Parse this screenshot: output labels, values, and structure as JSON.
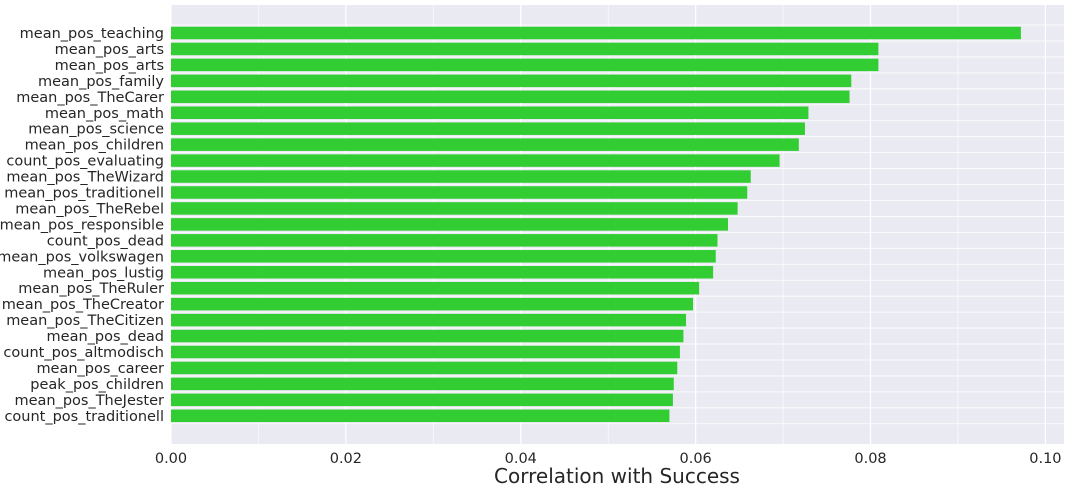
{
  "chart_data": {
    "type": "bar",
    "orientation": "horizontal",
    "title": "",
    "xlabel": "Correlation with Success",
    "ylabel": "",
    "xlim": [
      0.0,
      0.102
    ],
    "xticks": [
      "0.00",
      "0.02",
      "0.04",
      "0.06",
      "0.08",
      "0.10"
    ],
    "xtick_values": [
      0.0,
      0.02,
      0.04,
      0.06,
      0.08,
      0.1
    ],
    "grid": true,
    "style": "seaborn-darkgrid",
    "bar_color": "#32cd32",
    "background_color": "#eaeaf2",
    "categories": [
      "mean_pos_teaching",
      "mean_pos_arts",
      "mean_pos_arts",
      "mean_pos_family",
      "mean_pos_TheCarer",
      "mean_pos_math",
      "mean_pos_science",
      "mean_pos_children",
      "count_pos_evaluating",
      "mean_pos_TheWizard",
      "mean_pos_traditionell",
      "mean_pos_TheRebel",
      "mean_pos_responsible",
      "count_pos_dead",
      "mean_pos_volkswagen",
      "mean_pos_lustig",
      "mean_pos_TheRuler",
      "mean_pos_TheCreator",
      "mean_pos_TheCitizen",
      "mean_pos_dead",
      "count_pos_altmodisch",
      "mean_pos_career",
      "peak_pos_children",
      "mean_pos_TheJester",
      "count_pos_traditionell"
    ],
    "values": [
      0.0972,
      0.0809,
      0.0809,
      0.0778,
      0.0776,
      0.0729,
      0.0725,
      0.0718,
      0.0696,
      0.0663,
      0.0659,
      0.0648,
      0.0637,
      0.0625,
      0.0623,
      0.062,
      0.0604,
      0.0597,
      0.0589,
      0.0586,
      0.0582,
      0.0579,
      0.0575,
      0.0574,
      0.057
    ]
  }
}
